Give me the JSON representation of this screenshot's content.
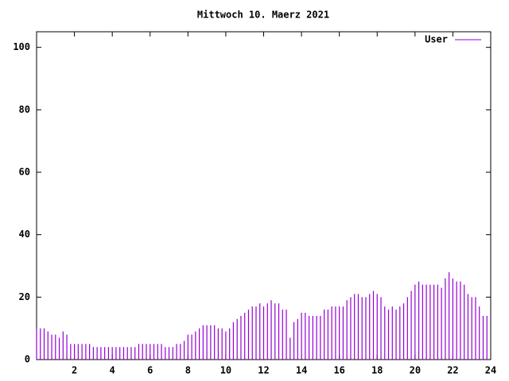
{
  "chart_data": {
    "type": "impulses",
    "title": "Mittwoch 10. Maerz 2021",
    "x": [
      0,
      0.2,
      0.4,
      0.6,
      0.8,
      1,
      1.2,
      1.4,
      1.6,
      1.8,
      2,
      2.2,
      2.4,
      2.6,
      2.8,
      3,
      3.2,
      3.4,
      3.6,
      3.8,
      4,
      4.2,
      4.4,
      4.6,
      4.8,
      5,
      5.2,
      5.4,
      5.6,
      5.8,
      6,
      6.2,
      6.4,
      6.6,
      6.8,
      7,
      7.2,
      7.4,
      7.6,
      7.8,
      8,
      8.2,
      8.4,
      8.6,
      8.8,
      9,
      9.2,
      9.4,
      9.6,
      9.8,
      10,
      10.2,
      10.4,
      10.6,
      10.8,
      11,
      11.2,
      11.4,
      11.6,
      11.8,
      12,
      12.2,
      12.4,
      12.6,
      12.8,
      13,
      13.2,
      13.4,
      13.6,
      13.8,
      14,
      14.2,
      14.4,
      14.6,
      14.8,
      15,
      15.2,
      15.4,
      15.6,
      15.8,
      16,
      16.2,
      16.4,
      16.6,
      16.8,
      17,
      17.2,
      17.4,
      17.6,
      17.8,
      18,
      18.2,
      18.4,
      18.6,
      18.8,
      19,
      19.2,
      19.4,
      19.6,
      19.8,
      20,
      20.2,
      20.4,
      20.6,
      20.8,
      21,
      21.2,
      21.4,
      21.6,
      21.8,
      22,
      22.2,
      22.4,
      22.6,
      22.8,
      23,
      23.2,
      23.4,
      23.6,
      23.8
    ],
    "series": [
      {
        "name": "User",
        "color": "#9400d3",
        "values": [
          10,
          10,
          10,
          9,
          8,
          8,
          7,
          9,
          8,
          5,
          5,
          5,
          5,
          5,
          5,
          4,
          4,
          4,
          4,
          4,
          4,
          4,
          4,
          4,
          4,
          4,
          4,
          5,
          5,
          5,
          5,
          5,
          5,
          5,
          4,
          4,
          4,
          5,
          5,
          6,
          8,
          8,
          9,
          10,
          11,
          11,
          11,
          11,
          10,
          10,
          9,
          10,
          12,
          13,
          14,
          15,
          16,
          17,
          17,
          18,
          17,
          18,
          19,
          18,
          18,
          16,
          16,
          7,
          12,
          13,
          15,
          15,
          14,
          14,
          14,
          14,
          16,
          16,
          17,
          17,
          17,
          17,
          19,
          20,
          21,
          21,
          20,
          20,
          21,
          22,
          21,
          20,
          17,
          16,
          17,
          16,
          17,
          18,
          20,
          22,
          24,
          25,
          24,
          24,
          24,
          24,
          24,
          23,
          26,
          28,
          26,
          25,
          25,
          24,
          21,
          20,
          20,
          17,
          14,
          14
        ]
      }
    ],
    "xlim": [
      0,
      24
    ],
    "xticks": [
      2,
      4,
      6,
      8,
      10,
      12,
      14,
      16,
      18,
      20,
      22,
      24
    ],
    "ylim": [
      0,
      105
    ],
    "yticks": [
      0,
      20,
      40,
      60,
      80,
      100
    ],
    "legend": "top-right"
  }
}
